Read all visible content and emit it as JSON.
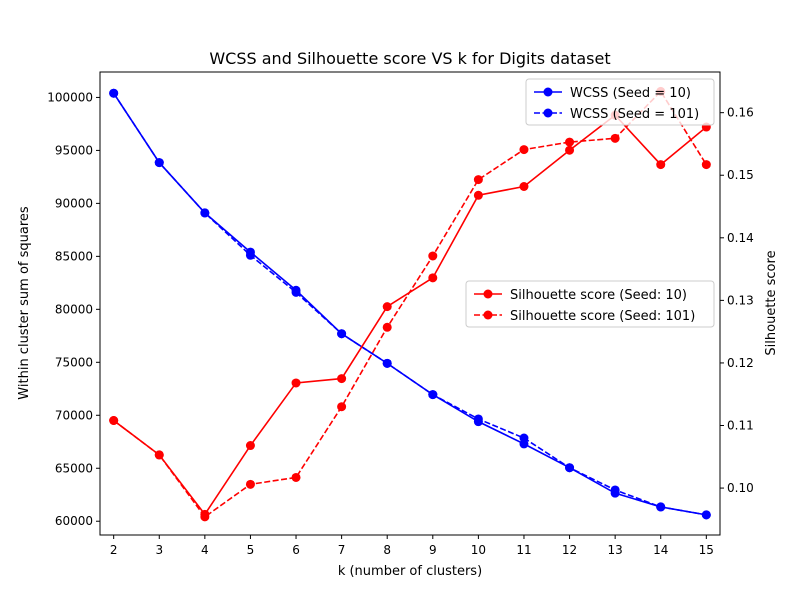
{
  "chart_data": {
    "type": "line",
    "title": "WCSS and Silhouette score VS k for Digits dataset",
    "xlabel": "k (number of clusters)",
    "ylabel_left": "Within cluster sum of squares",
    "ylabel_right": "Silhouette score",
    "x": [
      2,
      3,
      4,
      5,
      6,
      7,
      8,
      9,
      10,
      11,
      12,
      13,
      14,
      15
    ],
    "xlim": [
      1.7,
      15.3
    ],
    "ylim_left": [
      58700,
      102400
    ],
    "ylim_right": [
      0.0925,
      0.1665
    ],
    "yticks_left": [
      60000,
      65000,
      70000,
      75000,
      80000,
      85000,
      90000,
      95000,
      100000
    ],
    "yticks_right": [
      0.1,
      0.11,
      0.12,
      0.13,
      0.14,
      0.15,
      0.16
    ],
    "legend_upper_placement": "upper right",
    "legend_lower_placement": "center right",
    "series": [
      {
        "name": "WCSS (Seed = 10)",
        "axis": "left",
        "color": "#0000ff",
        "dash": "solid",
        "values": [
          100400,
          93850,
          89100,
          85400,
          81800,
          77700,
          74900,
          71950,
          69400,
          67300,
          65050,
          62650,
          61350,
          60600
        ]
      },
      {
        "name": "WCSS (Seed = 101)",
        "axis": "left",
        "color": "#0000ff",
        "dash": "dashed",
        "values": [
          100400,
          93850,
          89100,
          85100,
          81600,
          77700,
          74900,
          71950,
          69650,
          67850,
          65050,
          62950,
          61350,
          60600
        ]
      },
      {
        "name": "Silhouette score (Seed: 10)",
        "axis": "right",
        "color": "#ff0000",
        "dash": "solid",
        "values": [
          0.1108,
          0.1053,
          0.0958,
          0.1068,
          0.1168,
          0.1175,
          0.129,
          0.1336,
          0.1468,
          0.1482,
          0.154,
          0.1596,
          0.1517,
          0.1577
        ]
      },
      {
        "name": "Silhouette score (Seed: 101)",
        "axis": "right",
        "color": "#ff0000",
        "dash": "dashed",
        "values": [
          0.1108,
          0.1053,
          0.0954,
          0.1006,
          0.1017,
          0.113,
          0.1257,
          0.1371,
          0.1493,
          0.1541,
          0.1553,
          0.1559,
          0.1634,
          0.1517
        ]
      }
    ]
  }
}
